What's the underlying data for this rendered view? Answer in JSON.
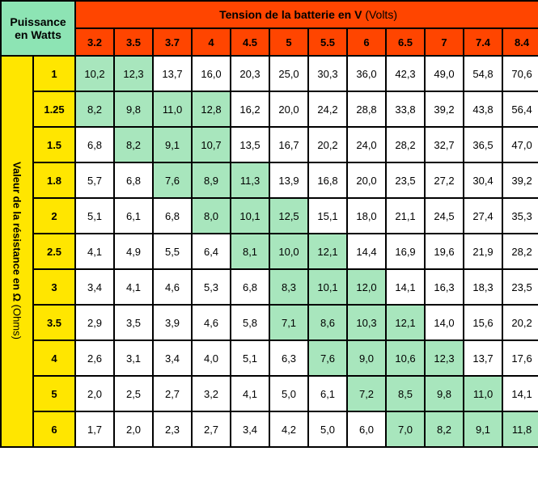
{
  "headers": {
    "corner_line1": "Puissance",
    "corner_line2": "en Watts",
    "voltage_title_bold": "Tension de la batterie en V",
    "voltage_title_paren": "(Volts)",
    "side_label_bold": "Valeur de la résistance en Ω",
    "side_label_paren": "(Ohms)"
  },
  "colors": {
    "corner_bg": "#8de4b4",
    "voltage_bg": "#ff4500",
    "side_bg": "#ffe600",
    "highlight_bg": "#a8e6bd",
    "cell_bg": "#ffffff",
    "border": "#000000"
  },
  "voltages": [
    "3.2",
    "3.5",
    "3.7",
    "4",
    "4.5",
    "5",
    "5.5",
    "6",
    "6.5",
    "7",
    "7.4",
    "8.4"
  ],
  "resistances": [
    "1",
    "1.25",
    "1.5",
    "1.8",
    "2",
    "2.5",
    "3",
    "3.5",
    "4",
    "5",
    "6"
  ],
  "values": [
    [
      "10,2",
      "12,3",
      "13,7",
      "16,0",
      "20,3",
      "25,0",
      "30,3",
      "36,0",
      "42,3",
      "49,0",
      "54,8",
      "70,6"
    ],
    [
      "8,2",
      "9,8",
      "11,0",
      "12,8",
      "16,2",
      "20,0",
      "24,2",
      "28,8",
      "33,8",
      "39,2",
      "43,8",
      "56,4"
    ],
    [
      "6,8",
      "8,2",
      "9,1",
      "10,7",
      "13,5",
      "16,7",
      "20,2",
      "24,0",
      "28,2",
      "32,7",
      "36,5",
      "47,0"
    ],
    [
      "5,7",
      "6,8",
      "7,6",
      "8,9",
      "11,3",
      "13,9",
      "16,8",
      "20,0",
      "23,5",
      "27,2",
      "30,4",
      "39,2"
    ],
    [
      "5,1",
      "6,1",
      "6,8",
      "8,0",
      "10,1",
      "12,5",
      "15,1",
      "18,0",
      "21,1",
      "24,5",
      "27,4",
      "35,3"
    ],
    [
      "4,1",
      "4,9",
      "5,5",
      "6,4",
      "8,1",
      "10,0",
      "12,1",
      "14,4",
      "16,9",
      "19,6",
      "21,9",
      "28,2"
    ],
    [
      "3,4",
      "4,1",
      "4,6",
      "5,3",
      "6,8",
      "8,3",
      "10,1",
      "12,0",
      "14,1",
      "16,3",
      "18,3",
      "23,5"
    ],
    [
      "2,9",
      "3,5",
      "3,9",
      "4,6",
      "5,8",
      "7,1",
      "8,6",
      "10,3",
      "12,1",
      "14,0",
      "15,6",
      "20,2"
    ],
    [
      "2,6",
      "3,1",
      "3,4",
      "4,0",
      "5,1",
      "6,3",
      "7,6",
      "9,0",
      "10,6",
      "12,3",
      "13,7",
      "17,6"
    ],
    [
      "2,0",
      "2,5",
      "2,7",
      "3,2",
      "4,1",
      "5,0",
      "6,1",
      "7,2",
      "8,5",
      "9,8",
      "11,0",
      "14,1"
    ],
    [
      "1,7",
      "2,0",
      "2,3",
      "2,7",
      "3,4",
      "4,2",
      "5,0",
      "6,0",
      "7,0",
      "8,2",
      "9,1",
      "11,8"
    ]
  ],
  "highlight": [
    [
      1,
      1,
      0,
      0,
      0,
      0,
      0,
      0,
      0,
      0,
      0,
      0
    ],
    [
      1,
      1,
      1,
      1,
      0,
      0,
      0,
      0,
      0,
      0,
      0,
      0
    ],
    [
      0,
      1,
      1,
      1,
      0,
      0,
      0,
      0,
      0,
      0,
      0,
      0
    ],
    [
      0,
      0,
      1,
      1,
      1,
      0,
      0,
      0,
      0,
      0,
      0,
      0
    ],
    [
      0,
      0,
      0,
      1,
      1,
      1,
      0,
      0,
      0,
      0,
      0,
      0
    ],
    [
      0,
      0,
      0,
      0,
      1,
      1,
      1,
      0,
      0,
      0,
      0,
      0
    ],
    [
      0,
      0,
      0,
      0,
      0,
      1,
      1,
      1,
      0,
      0,
      0,
      0
    ],
    [
      0,
      0,
      0,
      0,
      0,
      1,
      1,
      1,
      1,
      0,
      0,
      0
    ],
    [
      0,
      0,
      0,
      0,
      0,
      0,
      1,
      1,
      1,
      1,
      0,
      0
    ],
    [
      0,
      0,
      0,
      0,
      0,
      0,
      0,
      1,
      1,
      1,
      1,
      0
    ],
    [
      0,
      0,
      0,
      0,
      0,
      0,
      0,
      0,
      1,
      1,
      1,
      1
    ]
  ]
}
